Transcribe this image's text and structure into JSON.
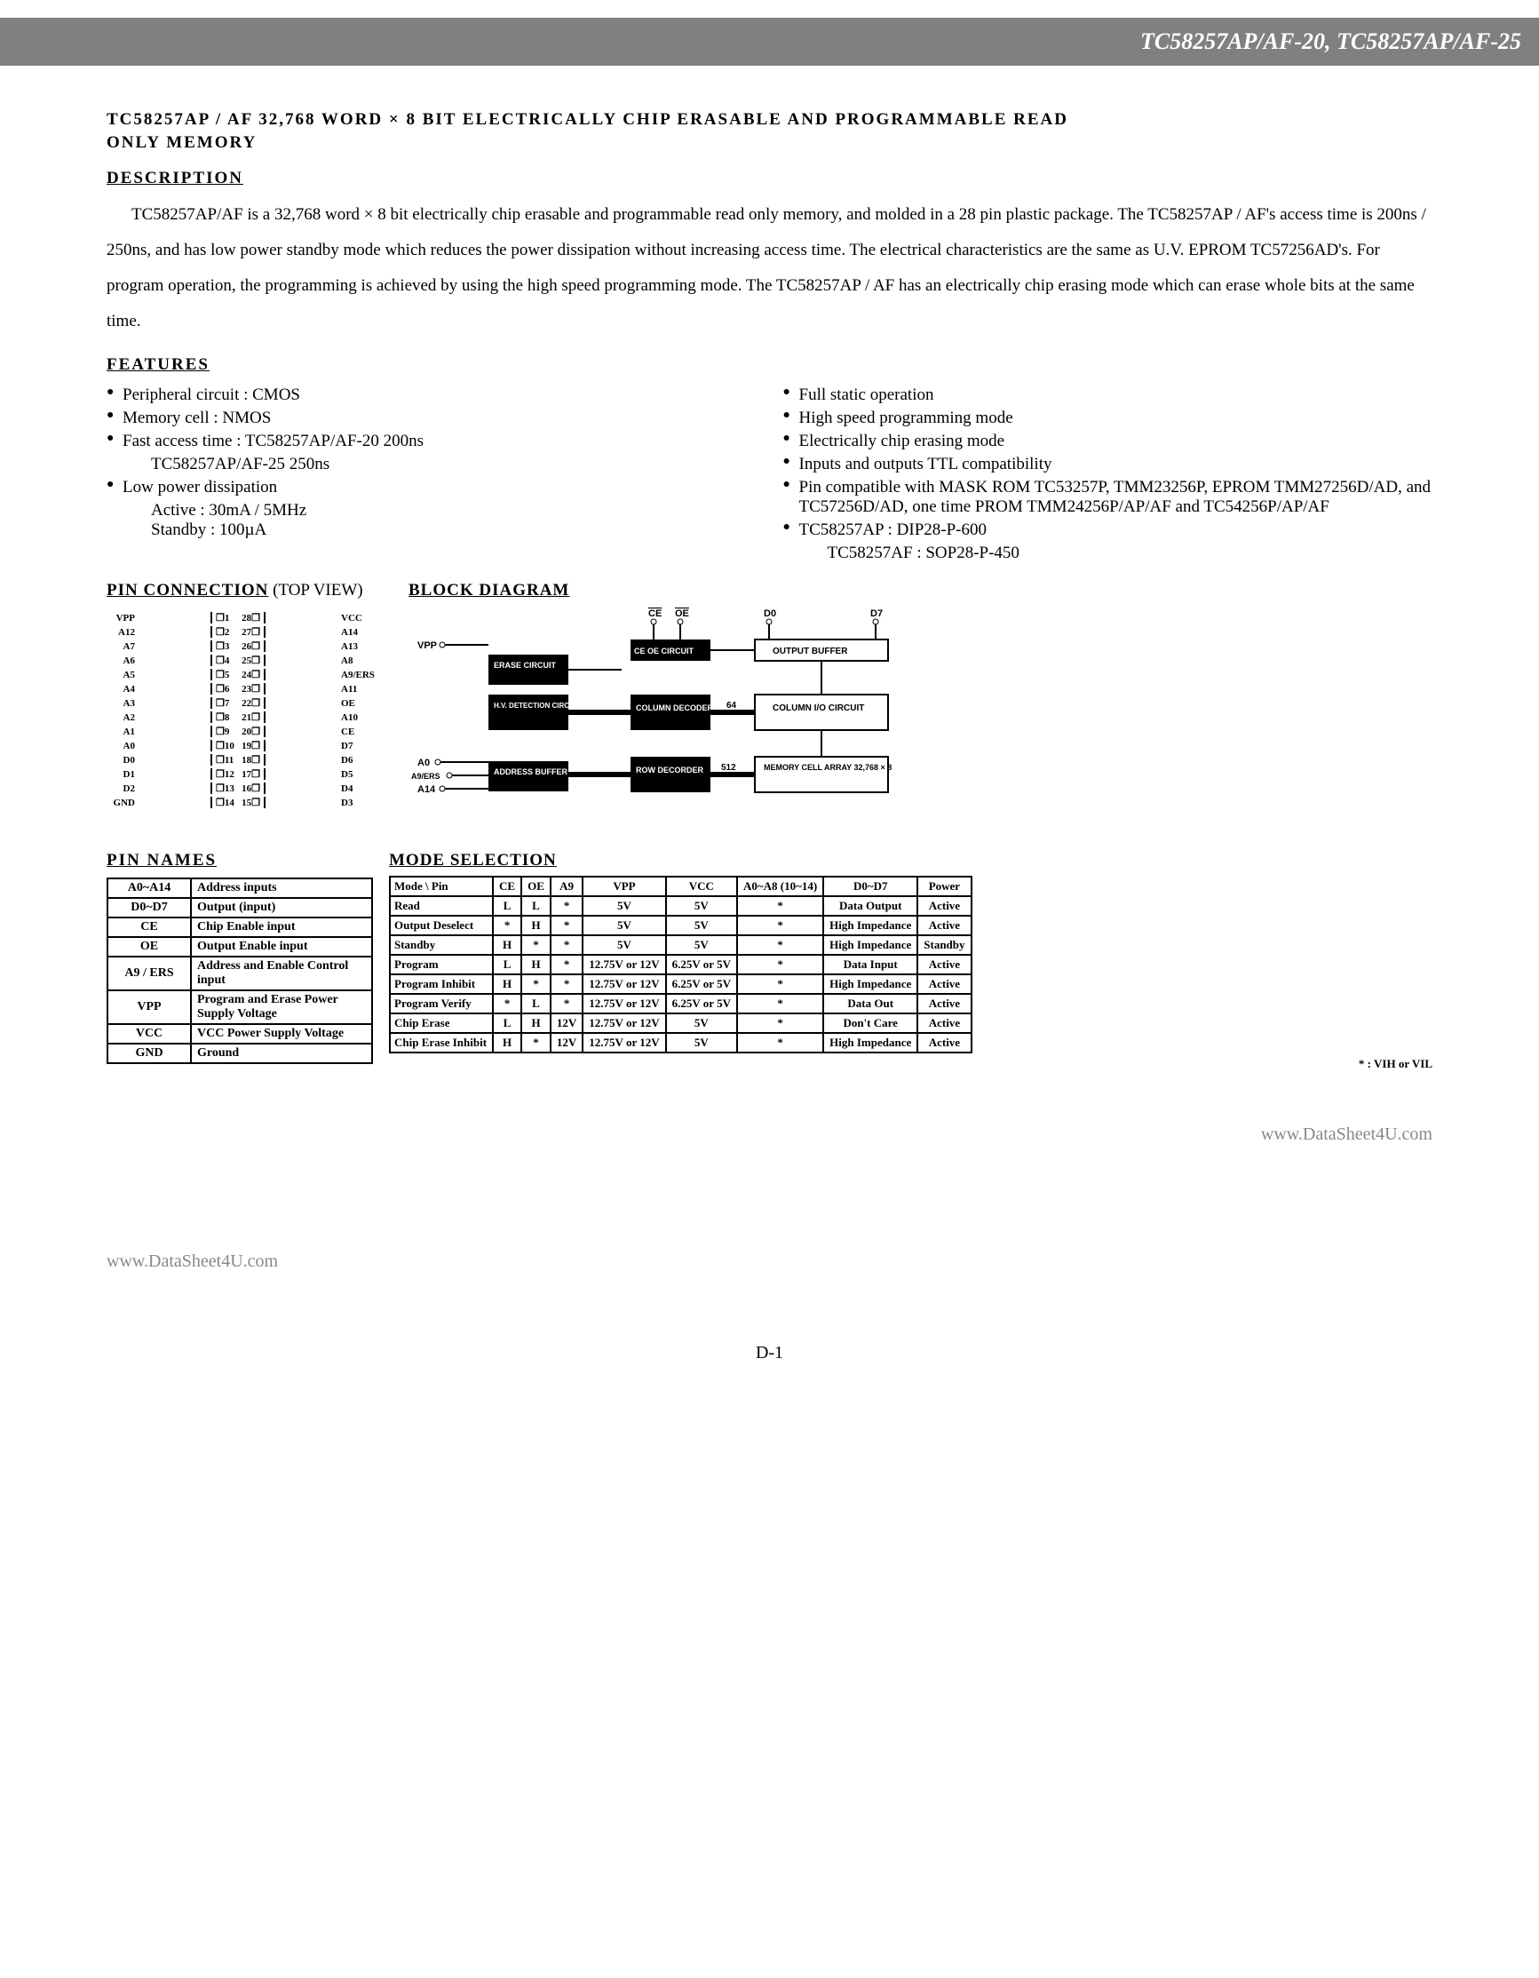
{
  "header_bar": "TC58257AP/AF-20, TC58257AP/AF-25",
  "title1": "TC58257AP / AF 32,768 WORD × 8 BIT ELECTRICALLY CHIP ERASABLE AND PROGRAMMABLE READ",
  "title2": "ONLY MEMORY",
  "h_desc": "DESCRIPTION",
  "desc_p1": "TC58257AP/AF is a 32,768 word × 8 bit electrically chip erasable and programmable read only memory, and molded in a 28 pin plastic package.  The TC58257AP / AF's access time is 200ns / 250ns, and has low power standby mode which reduces the power dissipation without increasing access time.  The electrical characteristics are the same as U.V. EPROM TC57256AD's.  For program operation, the programming is achieved by using the high speed programming mode.  The TC58257AP / AF has an electrically chip erasing mode which can erase whole bits at the same time.",
  "h_feat": "FEATURES",
  "feat_left": [
    "Peripheral circuit : CMOS",
    "Memory cell        : NMOS",
    "Fast access time :   TC58257AP/AF-20   200ns",
    "",
    "Low power dissipation"
  ],
  "feat_left_sub1": "TC58257AP/AF-25   250ns",
  "feat_left_active": "Active    :     30mA / 5MHz",
  "feat_left_standby": "Standby  :     100µA",
  "feat_right": [
    "Full static operation",
    "High speed programming mode",
    "Electrically chip erasing mode",
    "Inputs and outputs TTL compatibility",
    "Pin compatible with MASK ROM TC53257P, TMM23256P, EPROM TMM27256D/AD, and TC57256D/AD, one time PROM TMM24256P/AP/AF and TC54256P/AP/AF",
    "TC58257AP : DIP28-P-600"
  ],
  "feat_right_sub": "TC58257AF : SOP28-P-450",
  "h_pinconn": "PIN CONNECTION",
  "pinconn_sub": "(TOP VIEW)",
  "pins_left": [
    "VPP",
    "A12",
    "A7",
    "A6",
    "A5",
    "A4",
    "A3",
    "A2",
    "A1",
    "A0",
    "D0",
    "D1",
    "D2",
    "GND"
  ],
  "pins_right": [
    "VCC",
    "A14",
    "A13",
    "A8",
    "A9/ERS",
    "A11",
    "OE",
    "A10",
    "CE",
    "D7",
    "D6",
    "D5",
    "D4",
    "D3"
  ],
  "h_blockdiag": "BLOCK DIAGRAM",
  "bd_labels": {
    "ce": "CE",
    "oe": "OE",
    "d0": "D0",
    "d7": "D7",
    "vpp": "VPP",
    "a0": "A0",
    "a9": "A9/ERS",
    "a14": "A14",
    "erase": "ERASE CIRCUIT",
    "hv": "H.V. DETECTION CIRCUIT",
    "addr": "ADDRESS BUFFER",
    "ceoe": "CE OE CIRCUIT",
    "out": "OUTPUT BUFFER",
    "colio": "COLUMN I/O CIRCUIT",
    "coldec": "COLUMN DECODER",
    "rowdec": "ROW DECORDER",
    "mem": "MEMORY CELL ARRAY 32,768 × 8",
    "n64": "64",
    "n512": "512"
  },
  "h_pinnames": "PIN NAMES",
  "pinnames_rows": [
    [
      "A0~A14",
      "Address inputs"
    ],
    [
      "D0~D7",
      "Output (input)"
    ],
    [
      "CE",
      "Chip Enable input"
    ],
    [
      "OE",
      "Output Enable input"
    ],
    [
      "A9 / ERS",
      "Address and Enable Control input"
    ],
    [
      "VPP",
      "Program and Erase Power Supply Voltage"
    ],
    [
      "VCC",
      "VCC Power Supply Voltage"
    ],
    [
      "GND",
      "Ground"
    ]
  ],
  "h_modesel": "MODE SELECTION",
  "mode_headers": [
    "Mode \\ Pin",
    "CE",
    "OE",
    "A9",
    "VPP",
    "VCC",
    "A0~A8 (10~14)",
    "D0~D7",
    "Power"
  ],
  "mode_rows": [
    [
      "Read",
      "L",
      "L",
      "*",
      "5V",
      "5V",
      "*",
      "Data Output",
      "Active"
    ],
    [
      "Output Deselect",
      "*",
      "H",
      "*",
      "5V",
      "5V",
      "*",
      "High Impedance",
      "Active"
    ],
    [
      "Standby",
      "H",
      "*",
      "*",
      "5V",
      "5V",
      "*",
      "High Impedance",
      "Standby"
    ],
    [
      "Program",
      "L",
      "H",
      "*",
      "12.75V or 12V",
      "6.25V or 5V",
      "*",
      "Data Input",
      "Active"
    ],
    [
      "Program Inhibit",
      "H",
      "*",
      "*",
      "12.75V or 12V",
      "6.25V or 5V",
      "*",
      "High Impedance",
      "Active"
    ],
    [
      "Program Verify",
      "*",
      "L",
      "*",
      "12.75V or 12V",
      "6.25V or 5V",
      "*",
      "Data Out",
      "Active"
    ],
    [
      "Chip Erase",
      "L",
      "H",
      "12V",
      "12.75V or 12V",
      "5V",
      "*",
      "Don't Care",
      "Active"
    ],
    [
      "Chip Erase Inhibit",
      "H",
      "*",
      "12V",
      "12.75V or 12V",
      "5V",
      "*",
      "High Impedance",
      "Active"
    ]
  ],
  "mode_footnote": "* : VIH or VIL",
  "ds_url": "www.DataSheet4U.com",
  "page_num": "D-1"
}
